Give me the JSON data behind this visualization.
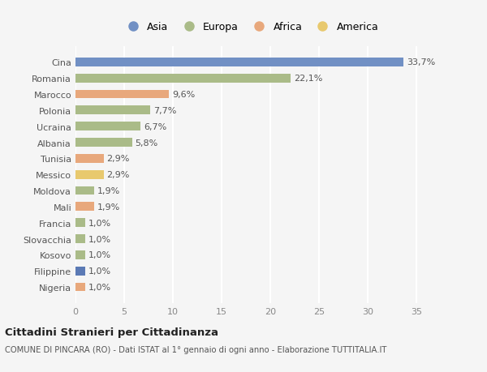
{
  "countries": [
    "Nigeria",
    "Filippine",
    "Kosovo",
    "Slovacchia",
    "Francia",
    "Mali",
    "Moldova",
    "Messico",
    "Tunisia",
    "Albania",
    "Ucraina",
    "Polonia",
    "Marocco",
    "Romania",
    "Cina"
  ],
  "values": [
    1.0,
    1.0,
    1.0,
    1.0,
    1.0,
    1.9,
    1.9,
    2.9,
    2.9,
    5.8,
    6.7,
    7.7,
    9.6,
    22.1,
    33.7
  ],
  "labels": [
    "1,0%",
    "1,0%",
    "1,0%",
    "1,0%",
    "1,0%",
    "1,9%",
    "1,9%",
    "2,9%",
    "2,9%",
    "5,8%",
    "6,7%",
    "7,7%",
    "9,6%",
    "22,1%",
    "33,7%"
  ],
  "colors": [
    "#e8a87c",
    "#5b7ab5",
    "#aabb88",
    "#aabb88",
    "#aabb88",
    "#e8a87c",
    "#aabb88",
    "#e8c96e",
    "#e8a87c",
    "#aabb88",
    "#aabb88",
    "#aabb88",
    "#e8a87c",
    "#aabb88",
    "#7190c4"
  ],
  "legend_labels": [
    "Asia",
    "Europa",
    "Africa",
    "America"
  ],
  "legend_colors": [
    "#7190c4",
    "#aabb88",
    "#e8a87c",
    "#e8c96e"
  ],
  "title": "Cittadini Stranieri per Cittadinanza",
  "subtitle": "COMUNE DI PINCARA (RO) - Dati ISTAT al 1° gennaio di ogni anno - Elaborazione TUTTITALIA.IT",
  "xlim": [
    0,
    36
  ],
  "xticks": [
    0,
    5,
    10,
    15,
    20,
    25,
    30,
    35
  ],
  "background_color": "#f5f5f5",
  "bar_height": 0.55,
  "grid_color": "#ffffff",
  "label_fontsize": 8,
  "tick_fontsize": 8,
  "ylabel_color": "#555555",
  "xlabel_color": "#888888"
}
